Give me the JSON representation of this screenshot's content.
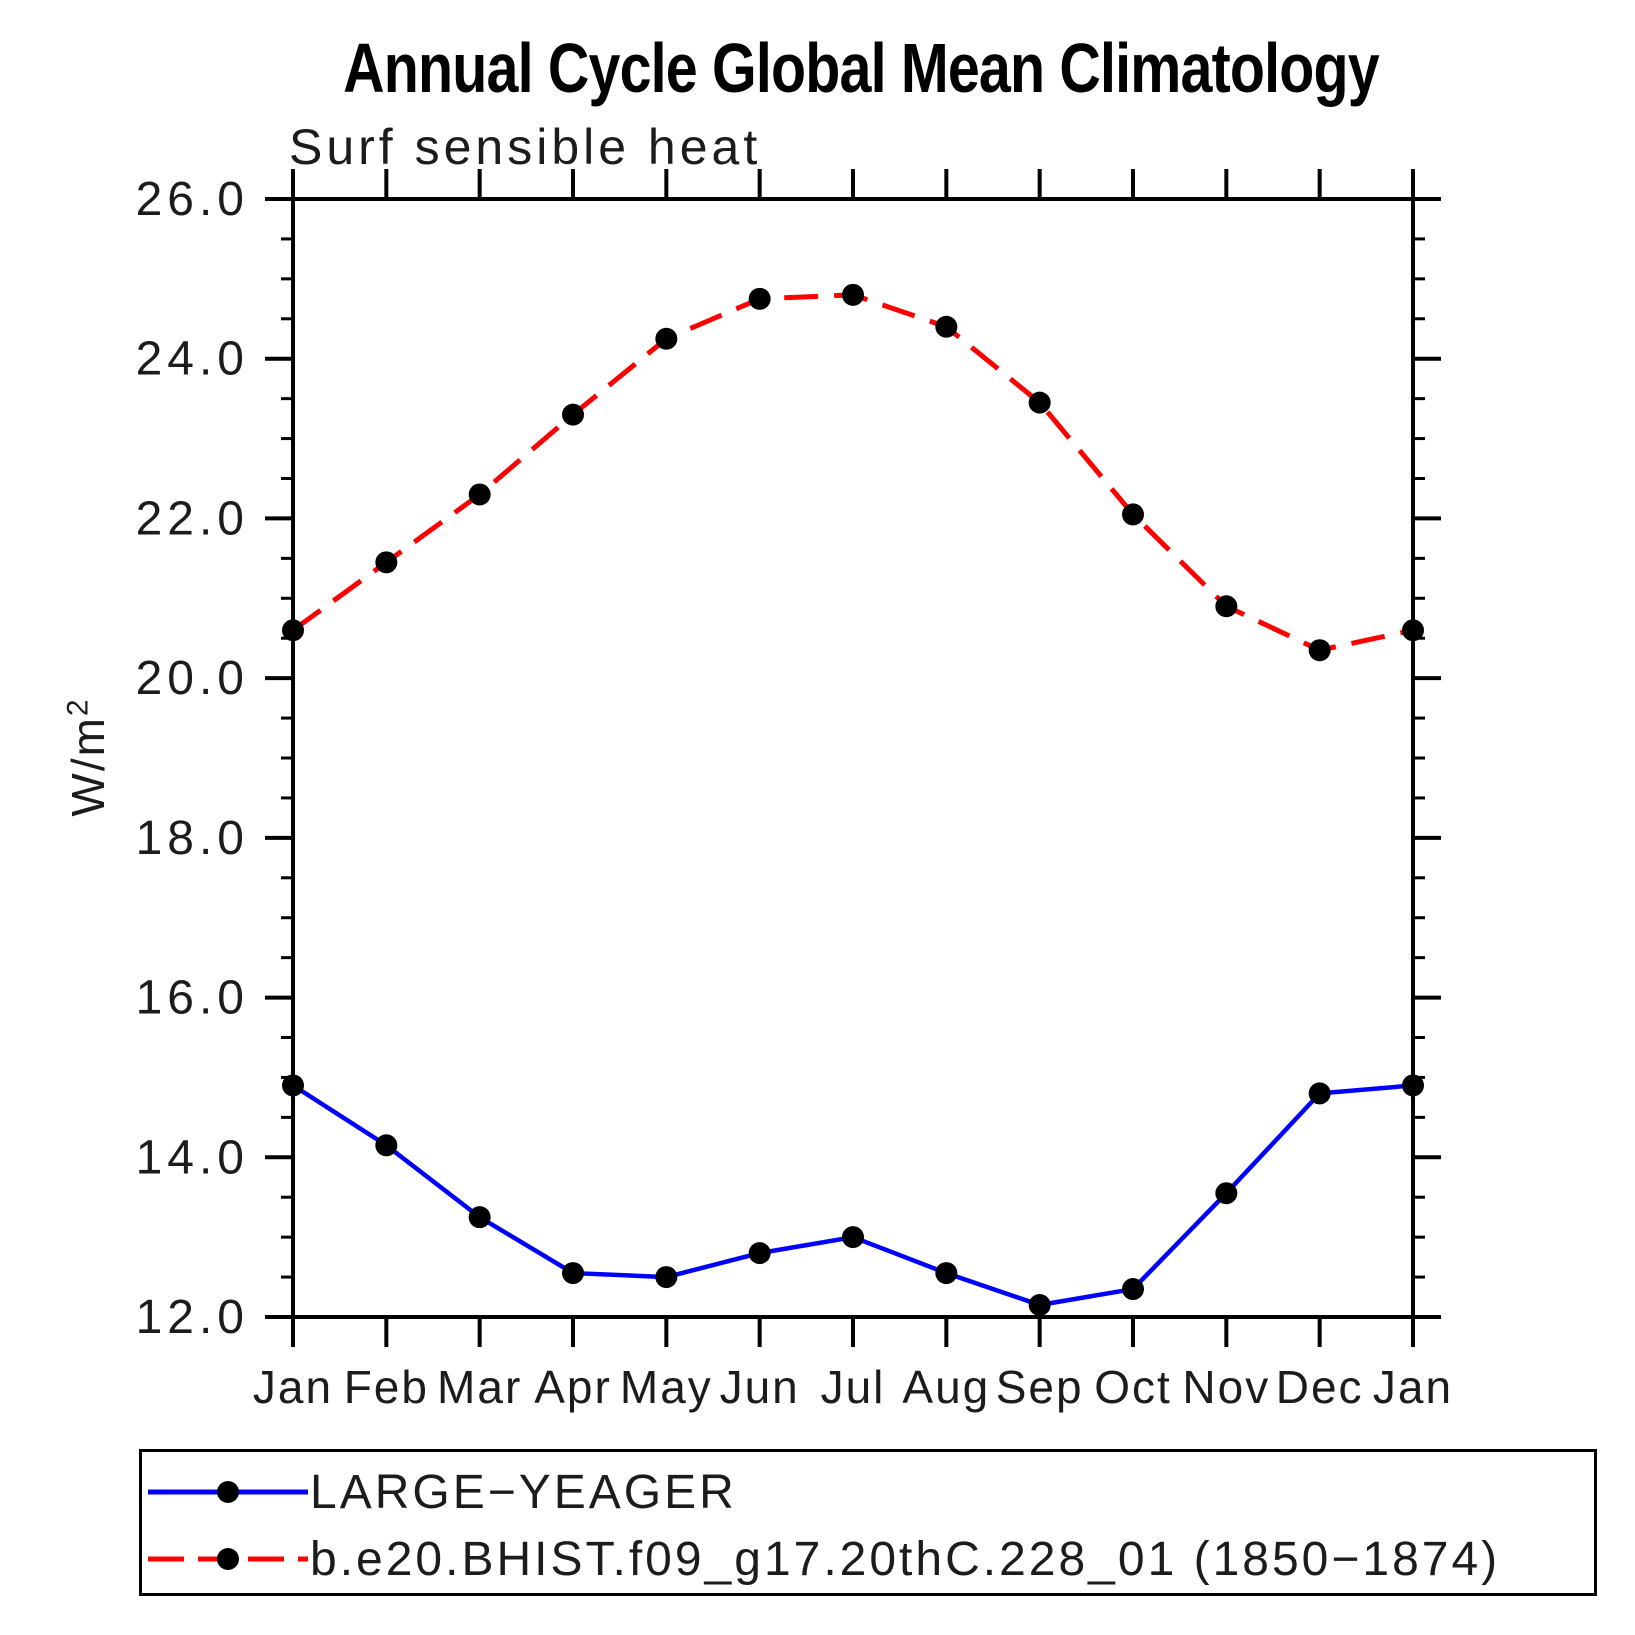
{
  "chart_data": {
    "type": "line",
    "title": "Annual Cycle Global Mean Climatology",
    "subtitle": "Surf sensible heat",
    "ylabel": "W/m²",
    "ylabel_base": "W/m",
    "ylabel_exp": "2",
    "categories": [
      "Jan",
      "Feb",
      "Mar",
      "Apr",
      "May",
      "Jun",
      "Jul",
      "Aug",
      "Sep",
      "Oct",
      "Nov",
      "Dec",
      "Jan"
    ],
    "y_axis": {
      "min": 12.0,
      "max": 26.0,
      "major_step": 2.0,
      "minor_step": 0.5,
      "tick_labels": [
        "12.0",
        "14.0",
        "16.0",
        "18.0",
        "20.0",
        "22.0",
        "24.0",
        "26.0"
      ]
    },
    "grid": false,
    "legend_position": "bottom",
    "marker": "filled-circle",
    "marker_color": "#000000",
    "axis_color": "#000000",
    "series": [
      {
        "name": "LARGE−YEAGER",
        "color": "#0000ff",
        "line_style": "solid",
        "values": [
          14.9,
          14.15,
          13.25,
          12.55,
          12.5,
          12.8,
          13.0,
          12.55,
          12.15,
          12.35,
          13.55,
          14.8,
          14.9
        ]
      },
      {
        "name": "b.e20.BHIST.f09_g17.20thC.228_01 (1850−1874)",
        "color": "#ff0000",
        "line_style": "dashed",
        "values": [
          20.6,
          21.45,
          22.3,
          23.3,
          24.25,
          24.75,
          24.8,
          24.4,
          23.45,
          22.05,
          20.9,
          20.35,
          20.6
        ]
      }
    ]
  }
}
